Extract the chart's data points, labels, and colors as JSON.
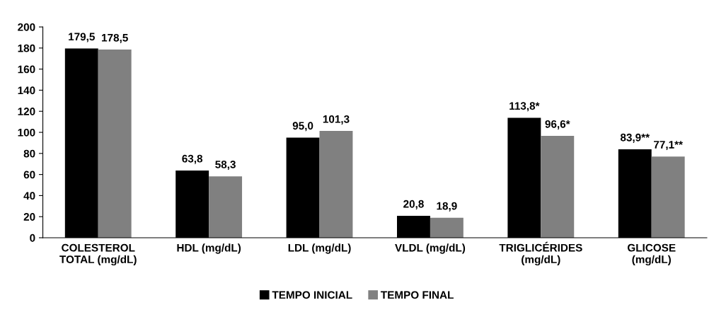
{
  "chart_data": {
    "type": "bar",
    "categories": [
      "COLESTEROL\nTOTAL (mg/dL)",
      "HDL (mg/dL)",
      "LDL (mg/dL)",
      "VLDL (mg/dL)",
      "TRIGLICÉRIDES\n(mg/dL)",
      "GLICOSE\n(mg/dL)"
    ],
    "series": [
      {
        "name": "TEMPO INICIAL",
        "color": "#000000",
        "values": [
          179.5,
          63.8,
          95.0,
          20.8,
          113.8,
          83.9
        ],
        "value_labels": [
          "179,5",
          "63,8",
          "95,0",
          "20,8",
          "113,8*",
          "83,9**"
        ]
      },
      {
        "name": "TEMPO FINAL",
        "color": "#808080",
        "values": [
          178.5,
          58.3,
          101.3,
          18.9,
          96.6,
          77.1
        ],
        "value_labels": [
          "178,5",
          "58,3",
          "101,3",
          "18,9",
          "96,6*",
          "77,1**"
        ]
      }
    ],
    "ylim": [
      0,
      200
    ],
    "yticks": [
      0,
      20,
      40,
      60,
      80,
      100,
      120,
      140,
      160,
      180,
      200
    ],
    "grid": false,
    "legend": "bottom"
  }
}
